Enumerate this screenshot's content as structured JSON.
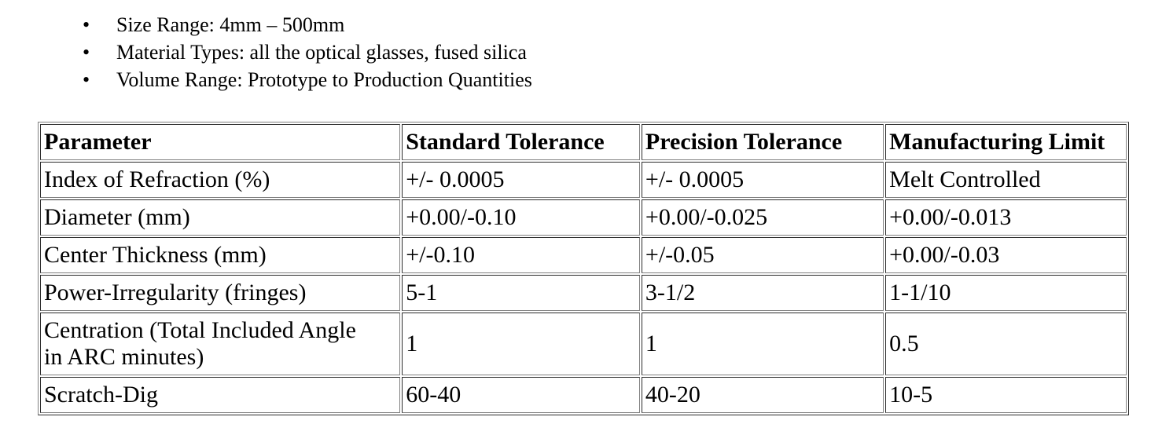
{
  "page": {
    "background_color": "#ffffff",
    "text_color": "#000000",
    "table_border_color": "#808080"
  },
  "bullet_list": {
    "marker": "•",
    "items": [
      "Size Range: 4mm – 500mm",
      "Material Types: all the optical glasses, fused silica",
      "Volume Range: Prototype to Production Quantities"
    ]
  },
  "tolerance_table": {
    "columns": [
      "Parameter",
      "Standard Tolerance",
      "Precision Tolerance",
      "Manufacturing Limit"
    ],
    "rows": [
      [
        "Index of Refraction (%)",
        "+/- 0.0005",
        "+/- 0.0005",
        "Melt Controlled"
      ],
      [
        "Diameter (mm)",
        "+0.00/-0.10",
        "+0.00/-0.025",
        "+0.00/-0.013"
      ],
      [
        "Center Thickness (mm)",
        "+/-0.10",
        "+/-0.05",
        "+0.00/-0.03"
      ],
      [
        "Power-Irregularity (fringes)",
        "5-1",
        "3-1/2",
        "1-1/10"
      ],
      [
        "Centration (Total Included Angle\nin ARC minutes)",
        "1",
        "1",
        "0.5"
      ],
      [
        "Scratch-Dig",
        "60-40",
        "40-20",
        "10-5"
      ]
    ]
  }
}
